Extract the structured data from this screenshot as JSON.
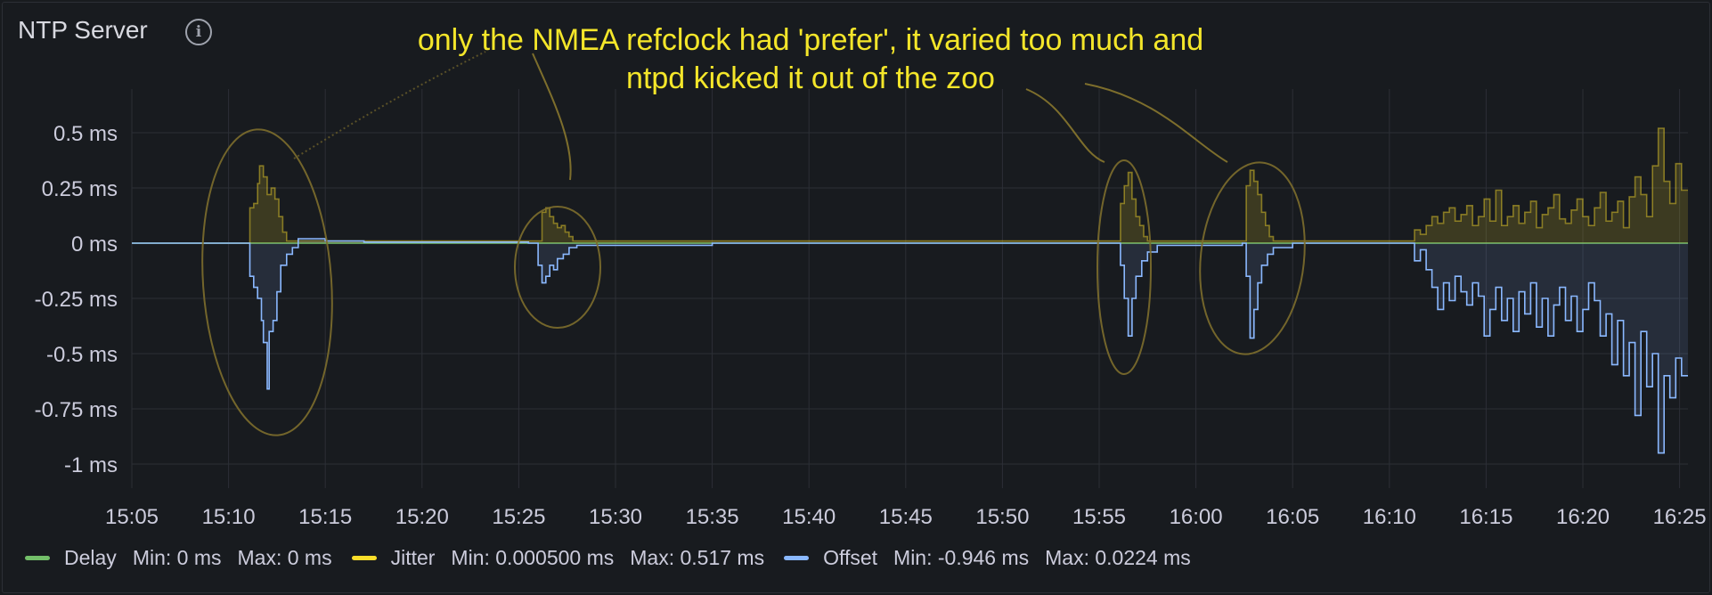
{
  "panel": {
    "title": "NTP Server",
    "info_icon": "info-circle-icon",
    "annotation": [
      "only the NMEA refclock had 'prefer', it varied too much and",
      "ntpd kicked it out of the zoo"
    ]
  },
  "legend": {
    "placement": "bottom-left",
    "items": [
      {
        "name": "Delay",
        "color": "#73bf69",
        "min_label": "Min:",
        "min": "0 ms",
        "max_label": "Max:",
        "max": "0 ms"
      },
      {
        "name": "Jitter",
        "color": "#fade2a",
        "min_label": "Min:",
        "min": "0.000500 ms",
        "max_label": "Max:",
        "max": "0.517 ms"
      },
      {
        "name": "Offset",
        "color": "#8ab8ff",
        "min_label": "Min:",
        "min": "-0.946 ms",
        "max_label": "Max:",
        "max": "0.0224 ms"
      }
    ]
  },
  "chart_data": {
    "type": "line",
    "title": "NTP Server",
    "xlabel": "",
    "ylabel": "",
    "grid": true,
    "ylim": [
      -1.1,
      0.7
    ],
    "x_ticks": [
      "15:05",
      "15:10",
      "15:15",
      "15:20",
      "15:25",
      "15:30",
      "15:35",
      "15:40",
      "15:45",
      "15:50",
      "15:55",
      "16:00",
      "16:05",
      "16:10",
      "16:15",
      "16:20",
      "16:25"
    ],
    "y_ticks": [
      {
        "value": 0.5,
        "label": "0.5 ms"
      },
      {
        "value": 0.25,
        "label": "0.25 ms"
      },
      {
        "value": 0,
        "label": "0 ms"
      },
      {
        "value": -0.25,
        "label": "-0.25 ms"
      },
      {
        "value": -0.5,
        "label": "-0.5 ms"
      },
      {
        "value": -0.75,
        "label": "-0.75 ms"
      },
      {
        "value": -1,
        "label": "-1 ms"
      }
    ],
    "x_range_minutes": [
      0,
      80.5
    ],
    "series": [
      {
        "name": "Delay",
        "color": "#73bf69",
        "points": [
          [
            0,
            0
          ],
          [
            80.5,
            0
          ]
        ]
      },
      {
        "name": "Jitter",
        "color": "#fade2a",
        "fill": true,
        "points": [
          [
            0,
            0
          ],
          [
            6,
            0
          ],
          [
            6.1,
            0.16
          ],
          [
            6.3,
            0.18
          ],
          [
            6.5,
            0.27
          ],
          [
            6.6,
            0.35
          ],
          [
            6.8,
            0.3
          ],
          [
            7.0,
            0.22
          ],
          [
            7.2,
            0.25
          ],
          [
            7.4,
            0.2
          ],
          [
            7.6,
            0.12
          ],
          [
            7.8,
            0.05
          ],
          [
            8.0,
            0.01
          ],
          [
            21.0,
            0.01
          ],
          [
            21.2,
            0.14
          ],
          [
            21.4,
            0.16
          ],
          [
            21.6,
            0.12
          ],
          [
            21.8,
            0.09
          ],
          [
            22.0,
            0.07
          ],
          [
            22.2,
            0.08
          ],
          [
            22.4,
            0.05
          ],
          [
            22.6,
            0.03
          ],
          [
            22.8,
            0.01
          ],
          [
            50.9,
            0.01
          ],
          [
            51.1,
            0.18
          ],
          [
            51.3,
            0.26
          ],
          [
            51.5,
            0.32
          ],
          [
            51.7,
            0.2
          ],
          [
            51.9,
            0.12
          ],
          [
            52.1,
            0.08
          ],
          [
            52.3,
            0.03
          ],
          [
            52.5,
            0.01
          ],
          [
            57.4,
            0.01
          ],
          [
            57.6,
            0.26
          ],
          [
            57.8,
            0.33
          ],
          [
            58.0,
            0.28
          ],
          [
            58.2,
            0.22
          ],
          [
            58.4,
            0.14
          ],
          [
            58.6,
            0.08
          ],
          [
            58.8,
            0.03
          ],
          [
            59.0,
            0.01
          ],
          [
            66.0,
            0.01
          ],
          [
            66.3,
            0.06
          ],
          [
            66.6,
            0.04
          ],
          [
            66.9,
            0.08
          ],
          [
            67.2,
            0.12
          ],
          [
            67.5,
            0.09
          ],
          [
            67.8,
            0.14
          ],
          [
            68.1,
            0.16
          ],
          [
            68.4,
            0.1
          ],
          [
            68.7,
            0.13
          ],
          [
            69.0,
            0.17
          ],
          [
            69.3,
            0.08
          ],
          [
            69.6,
            0.12
          ],
          [
            69.9,
            0.2
          ],
          [
            70.2,
            0.1
          ],
          [
            70.5,
            0.24
          ],
          [
            70.8,
            0.08
          ],
          [
            71.1,
            0.12
          ],
          [
            71.4,
            0.17
          ],
          [
            71.7,
            0.09
          ],
          [
            72.0,
            0.14
          ],
          [
            72.3,
            0.19
          ],
          [
            72.6,
            0.07
          ],
          [
            72.9,
            0.13
          ],
          [
            73.2,
            0.16
          ],
          [
            73.5,
            0.22
          ],
          [
            73.8,
            0.11
          ],
          [
            74.1,
            0.09
          ],
          [
            74.4,
            0.15
          ],
          [
            74.7,
            0.2
          ],
          [
            75.0,
            0.12
          ],
          [
            75.3,
            0.08
          ],
          [
            75.6,
            0.16
          ],
          [
            75.9,
            0.23
          ],
          [
            76.2,
            0.1
          ],
          [
            76.5,
            0.14
          ],
          [
            76.8,
            0.19
          ],
          [
            77.1,
            0.07
          ],
          [
            77.4,
            0.21
          ],
          [
            77.7,
            0.3
          ],
          [
            78.0,
            0.22
          ],
          [
            78.3,
            0.12
          ],
          [
            78.6,
            0.35
          ],
          [
            78.9,
            0.52
          ],
          [
            79.2,
            0.28
          ],
          [
            79.5,
            0.18
          ],
          [
            79.8,
            0.36
          ],
          [
            80.1,
            0.24
          ],
          [
            80.5,
            0.15
          ]
        ]
      },
      {
        "name": "Offset",
        "color": "#8ab8ff",
        "fill": true,
        "points": [
          [
            0,
            0
          ],
          [
            5.9,
            0
          ],
          [
            6.1,
            -0.15
          ],
          [
            6.3,
            -0.2
          ],
          [
            6.5,
            -0.25
          ],
          [
            6.7,
            -0.35
          ],
          [
            6.8,
            -0.45
          ],
          [
            7.0,
            -0.66
          ],
          [
            7.1,
            -0.4
          ],
          [
            7.3,
            -0.35
          ],
          [
            7.5,
            -0.22
          ],
          [
            7.7,
            -0.1
          ],
          [
            8.0,
            -0.05
          ],
          [
            8.3,
            -0.02
          ],
          [
            8.6,
            0.02
          ],
          [
            10.0,
            0.01
          ],
          [
            12.0,
            0.005
          ],
          [
            20.5,
            0
          ],
          [
            21.0,
            -0.1
          ],
          [
            21.2,
            -0.18
          ],
          [
            21.4,
            -0.15
          ],
          [
            21.6,
            -0.1
          ],
          [
            21.8,
            -0.12
          ],
          [
            22.0,
            -0.07
          ],
          [
            22.3,
            -0.05
          ],
          [
            22.6,
            -0.02
          ],
          [
            23.0,
            -0.01
          ],
          [
            30.0,
            0
          ],
          [
            50.9,
            0
          ],
          [
            51.1,
            -0.1
          ],
          [
            51.3,
            -0.25
          ],
          [
            51.5,
            -0.42
          ],
          [
            51.7,
            -0.25
          ],
          [
            51.9,
            -0.15
          ],
          [
            52.2,
            -0.08
          ],
          [
            52.5,
            -0.04
          ],
          [
            53.0,
            -0.01
          ],
          [
            57.4,
            0
          ],
          [
            57.6,
            -0.15
          ],
          [
            57.8,
            -0.43
          ],
          [
            58.0,
            -0.3
          ],
          [
            58.2,
            -0.18
          ],
          [
            58.4,
            -0.1
          ],
          [
            58.7,
            -0.05
          ],
          [
            59.0,
            -0.02
          ],
          [
            60.0,
            0
          ],
          [
            66.0,
            0
          ],
          [
            66.3,
            -0.08
          ],
          [
            66.6,
            -0.03
          ],
          [
            66.9,
            -0.12
          ],
          [
            67.2,
            -0.2
          ],
          [
            67.5,
            -0.3
          ],
          [
            67.8,
            -0.18
          ],
          [
            68.1,
            -0.26
          ],
          [
            68.4,
            -0.15
          ],
          [
            68.7,
            -0.22
          ],
          [
            69.0,
            -0.28
          ],
          [
            69.3,
            -0.18
          ],
          [
            69.6,
            -0.24
          ],
          [
            69.9,
            -0.42
          ],
          [
            70.2,
            -0.3
          ],
          [
            70.5,
            -0.2
          ],
          [
            70.8,
            -0.35
          ],
          [
            71.1,
            -0.25
          ],
          [
            71.4,
            -0.4
          ],
          [
            71.7,
            -0.22
          ],
          [
            72.0,
            -0.32
          ],
          [
            72.3,
            -0.18
          ],
          [
            72.6,
            -0.38
          ],
          [
            72.9,
            -0.25
          ],
          [
            73.2,
            -0.42
          ],
          [
            73.5,
            -0.28
          ],
          [
            73.8,
            -0.2
          ],
          [
            74.1,
            -0.35
          ],
          [
            74.4,
            -0.24
          ],
          [
            74.7,
            -0.4
          ],
          [
            75.0,
            -0.3
          ],
          [
            75.3,
            -0.18
          ],
          [
            75.6,
            -0.26
          ],
          [
            75.9,
            -0.42
          ],
          [
            76.2,
            -0.32
          ],
          [
            76.5,
            -0.55
          ],
          [
            76.8,
            -0.35
          ],
          [
            77.1,
            -0.6
          ],
          [
            77.4,
            -0.45
          ],
          [
            77.7,
            -0.78
          ],
          [
            78.0,
            -0.4
          ],
          [
            78.3,
            -0.65
          ],
          [
            78.6,
            -0.5
          ],
          [
            78.9,
            -0.95
          ],
          [
            79.2,
            -0.6
          ],
          [
            79.5,
            -0.7
          ],
          [
            79.8,
            -0.52
          ],
          [
            80.1,
            -0.6
          ],
          [
            80.5,
            -0.75
          ]
        ]
      }
    ]
  }
}
